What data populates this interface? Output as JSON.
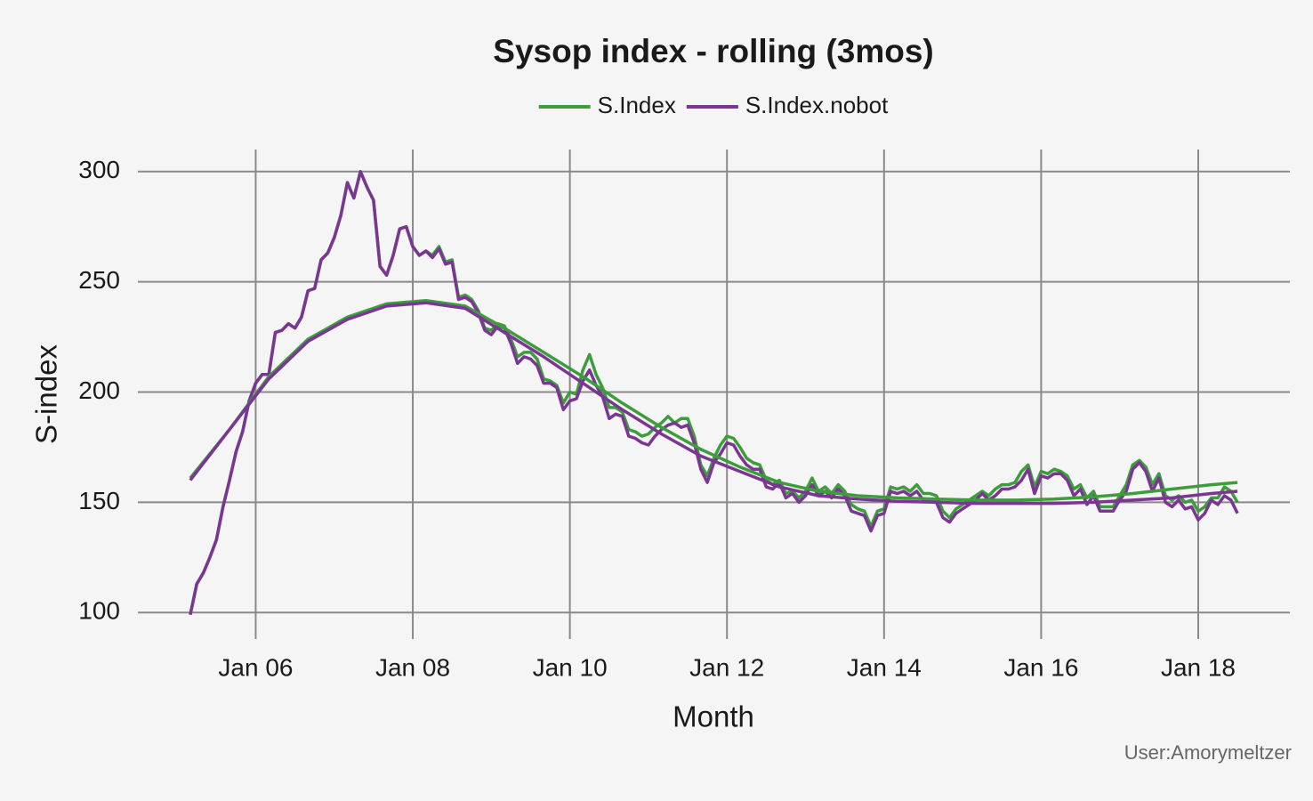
{
  "chart_data": {
    "type": "line",
    "title": "Sysop index - rolling (3mos)",
    "x_label": "Month",
    "y_label": "S-index",
    "caption": "User:Amorymeltzer",
    "grid": true,
    "legend_position": "top",
    "x": [
      "2005-03",
      "2005-04",
      "2005-05",
      "2005-06",
      "2005-07",
      "2005-08",
      "2005-09",
      "2005-10",
      "2005-11",
      "2005-12",
      "2006-01",
      "2006-02",
      "2006-03",
      "2006-04",
      "2006-05",
      "2006-06",
      "2006-07",
      "2006-08",
      "2006-09",
      "2006-10",
      "2006-11",
      "2006-12",
      "2007-01",
      "2007-02",
      "2007-03",
      "2007-04",
      "2007-05",
      "2007-06",
      "2007-07",
      "2007-08",
      "2007-09",
      "2007-10",
      "2007-11",
      "2007-12",
      "2008-01",
      "2008-02",
      "2008-03",
      "2008-04",
      "2008-05",
      "2008-06",
      "2008-07",
      "2008-08",
      "2008-09",
      "2008-10",
      "2008-11",
      "2008-12",
      "2009-01",
      "2009-02",
      "2009-03",
      "2009-04",
      "2009-05",
      "2009-06",
      "2009-07",
      "2009-08",
      "2009-09",
      "2009-10",
      "2009-11",
      "2009-12",
      "2010-01",
      "2010-02",
      "2010-03",
      "2010-04",
      "2010-05",
      "2010-06",
      "2010-07",
      "2010-08",
      "2010-09",
      "2010-10",
      "2010-11",
      "2010-12",
      "2011-01",
      "2011-02",
      "2011-03",
      "2011-04",
      "2011-05",
      "2011-06",
      "2011-07",
      "2011-08",
      "2011-09",
      "2011-10",
      "2011-11",
      "2011-12",
      "2012-01",
      "2012-02",
      "2012-03",
      "2012-04",
      "2012-05",
      "2012-06",
      "2012-07",
      "2012-08",
      "2012-09",
      "2012-10",
      "2012-11",
      "2012-12",
      "2013-01",
      "2013-02",
      "2013-03",
      "2013-04",
      "2013-05",
      "2013-06",
      "2013-07",
      "2013-08",
      "2013-09",
      "2013-10",
      "2013-11",
      "2013-12",
      "2014-01",
      "2014-02",
      "2014-03",
      "2014-04",
      "2014-05",
      "2014-06",
      "2014-07",
      "2014-08",
      "2014-09",
      "2014-10",
      "2014-11",
      "2014-12",
      "2015-01",
      "2015-02",
      "2015-03",
      "2015-04",
      "2015-05",
      "2015-06",
      "2015-07",
      "2015-08",
      "2015-09",
      "2015-10",
      "2015-11",
      "2015-12",
      "2016-01",
      "2016-02",
      "2016-03",
      "2016-04",
      "2016-05",
      "2016-06",
      "2016-07",
      "2016-08",
      "2016-09",
      "2016-10",
      "2016-11",
      "2016-12",
      "2017-01",
      "2017-02",
      "2017-03",
      "2017-04",
      "2017-05",
      "2017-06",
      "2017-07",
      "2017-08",
      "2017-09",
      "2017-10",
      "2017-11",
      "2017-12",
      "2018-01",
      "2018-02",
      "2018-03",
      "2018-04",
      "2018-05",
      "2018-06",
      "2018-07"
    ],
    "series": [
      {
        "name": "S.Index",
        "color": "#3c9e3a",
        "values": [
          99,
          113,
          118,
          125,
          133,
          148,
          160,
          173,
          182,
          196,
          204,
          208,
          208,
          227,
          228,
          231,
          229,
          234,
          246,
          247,
          260,
          263,
          270,
          280,
          295,
          288,
          300,
          293,
          287,
          257,
          253,
          262,
          274,
          275,
          266,
          262,
          264,
          262,
          266,
          259,
          260,
          243,
          244,
          242,
          237,
          229,
          228,
          231,
          230,
          224,
          216,
          218,
          218,
          215,
          206,
          205,
          203,
          195,
          200,
          199,
          210,
          217,
          208,
          202,
          193,
          193,
          191,
          183,
          182,
          180,
          181,
          184,
          186,
          189,
          186,
          188,
          188,
          180,
          167,
          162,
          170,
          176,
          180,
          179,
          175,
          170,
          168,
          167,
          160,
          158,
          160,
          154,
          155,
          152,
          155,
          161,
          155,
          157,
          154,
          158,
          155,
          149,
          147,
          146,
          139,
          146,
          147,
          157,
          156,
          157,
          155,
          158,
          154,
          154,
          153,
          146,
          143,
          147,
          149,
          151,
          153,
          155,
          153,
          156,
          158,
          158,
          159,
          164,
          167,
          157,
          164,
          163,
          165,
          164,
          162,
          156,
          158,
          152,
          155,
          148,
          148,
          148,
          153,
          158,
          167,
          169,
          166,
          158,
          163,
          153,
          151,
          153,
          150,
          151,
          146,
          148,
          152,
          152,
          157,
          155,
          150
        ],
        "trend": {
          "x": [
            "2005-03",
            "2005-09",
            "2006-03",
            "2006-09",
            "2007-03",
            "2007-09",
            "2008-03",
            "2008-09",
            "2009-03",
            "2009-09",
            "2010-03",
            "2010-09",
            "2011-03",
            "2011-09",
            "2012-03",
            "2012-09",
            "2013-03",
            "2013-09",
            "2014-03",
            "2014-09",
            "2015-03",
            "2015-09",
            "2016-03",
            "2016-09",
            "2017-03",
            "2017-09",
            "2018-03",
            "2018-07"
          ],
          "values": [
            161,
            183,
            207,
            224,
            234,
            240,
            241.5,
            239,
            229,
            218,
            207,
            195,
            184,
            174,
            166,
            159,
            155,
            153,
            152,
            151.5,
            151,
            151,
            151.5,
            152.5,
            154,
            156,
            158,
            159
          ]
        }
      },
      {
        "name": "S.Index.nobot",
        "color": "#7b3694",
        "values": [
          99,
          113,
          118,
          125,
          133,
          148,
          160,
          173,
          182,
          196,
          204,
          208,
          208,
          227,
          228,
          231,
          229,
          234,
          246,
          247,
          260,
          263,
          270,
          280,
          295,
          288,
          300,
          293,
          287,
          257,
          253,
          262,
          274,
          275,
          266,
          262,
          264,
          261,
          265,
          258,
          259,
          242,
          243,
          241,
          236,
          228,
          226,
          230,
          229,
          222,
          213,
          216,
          215,
          212,
          204,
          204,
          202,
          192,
          196,
          197,
          205,
          210,
          203,
          198,
          188,
          190,
          189,
          180,
          179,
          177,
          176,
          180,
          183,
          185,
          186,
          184,
          185,
          177,
          165,
          159,
          168,
          172,
          177,
          176,
          171,
          167,
          165,
          165,
          157,
          156,
          159,
          152,
          154,
          150,
          153,
          158,
          153,
          155,
          152,
          156,
          153,
          146,
          145,
          144,
          137,
          144,
          145,
          155,
          154,
          155,
          153,
          155,
          151,
          151,
          150,
          143,
          141,
          145,
          147,
          149,
          151,
          154,
          151,
          153,
          156,
          156,
          157,
          160,
          165,
          154,
          162,
          161,
          163,
          163,
          160,
          153,
          156,
          149,
          153,
          146,
          146,
          146,
          151,
          155,
          165,
          168,
          164,
          155,
          161,
          150,
          148,
          151,
          147,
          148,
          142,
          145,
          151,
          149,
          153,
          151,
          145
        ],
        "trend": {
          "x": [
            "2005-03",
            "2005-09",
            "2006-03",
            "2006-09",
            "2007-03",
            "2007-09",
            "2008-03",
            "2008-09",
            "2009-03",
            "2009-09",
            "2010-03",
            "2010-09",
            "2011-03",
            "2011-09",
            "2012-03",
            "2012-09",
            "2013-03",
            "2013-09",
            "2014-03",
            "2014-09",
            "2015-03",
            "2015-09",
            "2016-03",
            "2016-09",
            "2017-03",
            "2017-09",
            "2018-03",
            "2018-07"
          ],
          "values": [
            160,
            183,
            206,
            223,
            233,
            239,
            240.5,
            238,
            227,
            216,
            204,
            192,
            181,
            171,
            164,
            157,
            153,
            151.5,
            150.5,
            150,
            149.5,
            149.5,
            149.5,
            150,
            151,
            152,
            154,
            155
          ]
        }
      }
    ],
    "xlim": [
      "2004-07",
      "2019-03"
    ],
    "xticks": [
      {
        "value": "2006-01",
        "label": "Jan 06"
      },
      {
        "value": "2008-01",
        "label": "Jan 08"
      },
      {
        "value": "2010-01",
        "label": "Jan 10"
      },
      {
        "value": "2012-01",
        "label": "Jan 12"
      },
      {
        "value": "2014-01",
        "label": "Jan 14"
      },
      {
        "value": "2016-01",
        "label": "Jan 16"
      },
      {
        "value": "2018-01",
        "label": "Jan 18"
      }
    ],
    "ylim": [
      88,
      310
    ],
    "yticks": [
      100,
      150,
      200,
      250,
      300
    ]
  }
}
